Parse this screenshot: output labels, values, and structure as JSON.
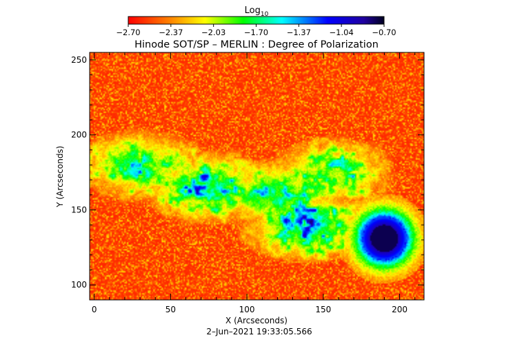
{
  "colorbar": {
    "label_main": "Log",
    "label_sub": "10",
    "tick_labels": [
      "−2.70",
      "−2.37",
      "−2.03",
      "−1.70",
      "−1.37",
      "−1.04",
      "−0.70"
    ]
  },
  "footer": {
    "timestamp": "2–Jun–2021 19:33:05.566"
  },
  "chart_data": {
    "type": "heatmap",
    "title": "Hinode SOT/SP – MERLIN : Degree of Polarization",
    "xlabel": "X (Arcseconds)",
    "ylabel": "Y (Arcseconds)",
    "xlim": [
      -3,
      216
    ],
    "ylim": [
      90,
      255
    ],
    "x_ticks": [
      0,
      50,
      100,
      150,
      200
    ],
    "x_tick_labels": [
      "0",
      "50",
      "100",
      "150",
      "200"
    ],
    "y_ticks": [
      100,
      150,
      200,
      250
    ],
    "y_tick_labels": [
      "100",
      "150",
      "200",
      "250"
    ],
    "color_scale": {
      "log10_min": -2.7,
      "log10_max": -0.7,
      "colormap": [
        "#ff0000",
        "#ff8000",
        "#ffff00",
        "#00ff00",
        "#00ffff",
        "#0000ff",
        "#000040"
      ]
    },
    "features": [
      {
        "kind": "sunspot-umbra",
        "x": 190,
        "y": 131,
        "value_log10": -0.75
      },
      {
        "kind": "plage-network",
        "x": 30,
        "y": 180,
        "value_log10": -1.4
      },
      {
        "kind": "plage-network",
        "x": 75,
        "y": 165,
        "value_log10": -1.3
      },
      {
        "kind": "plage-network",
        "x": 120,
        "y": 160,
        "value_log10": -1.3
      },
      {
        "kind": "plage-network",
        "x": 140,
        "y": 140,
        "value_log10": -1.2
      },
      {
        "kind": "plage-network",
        "x": 155,
        "y": 175,
        "value_log10": -1.5
      }
    ]
  }
}
